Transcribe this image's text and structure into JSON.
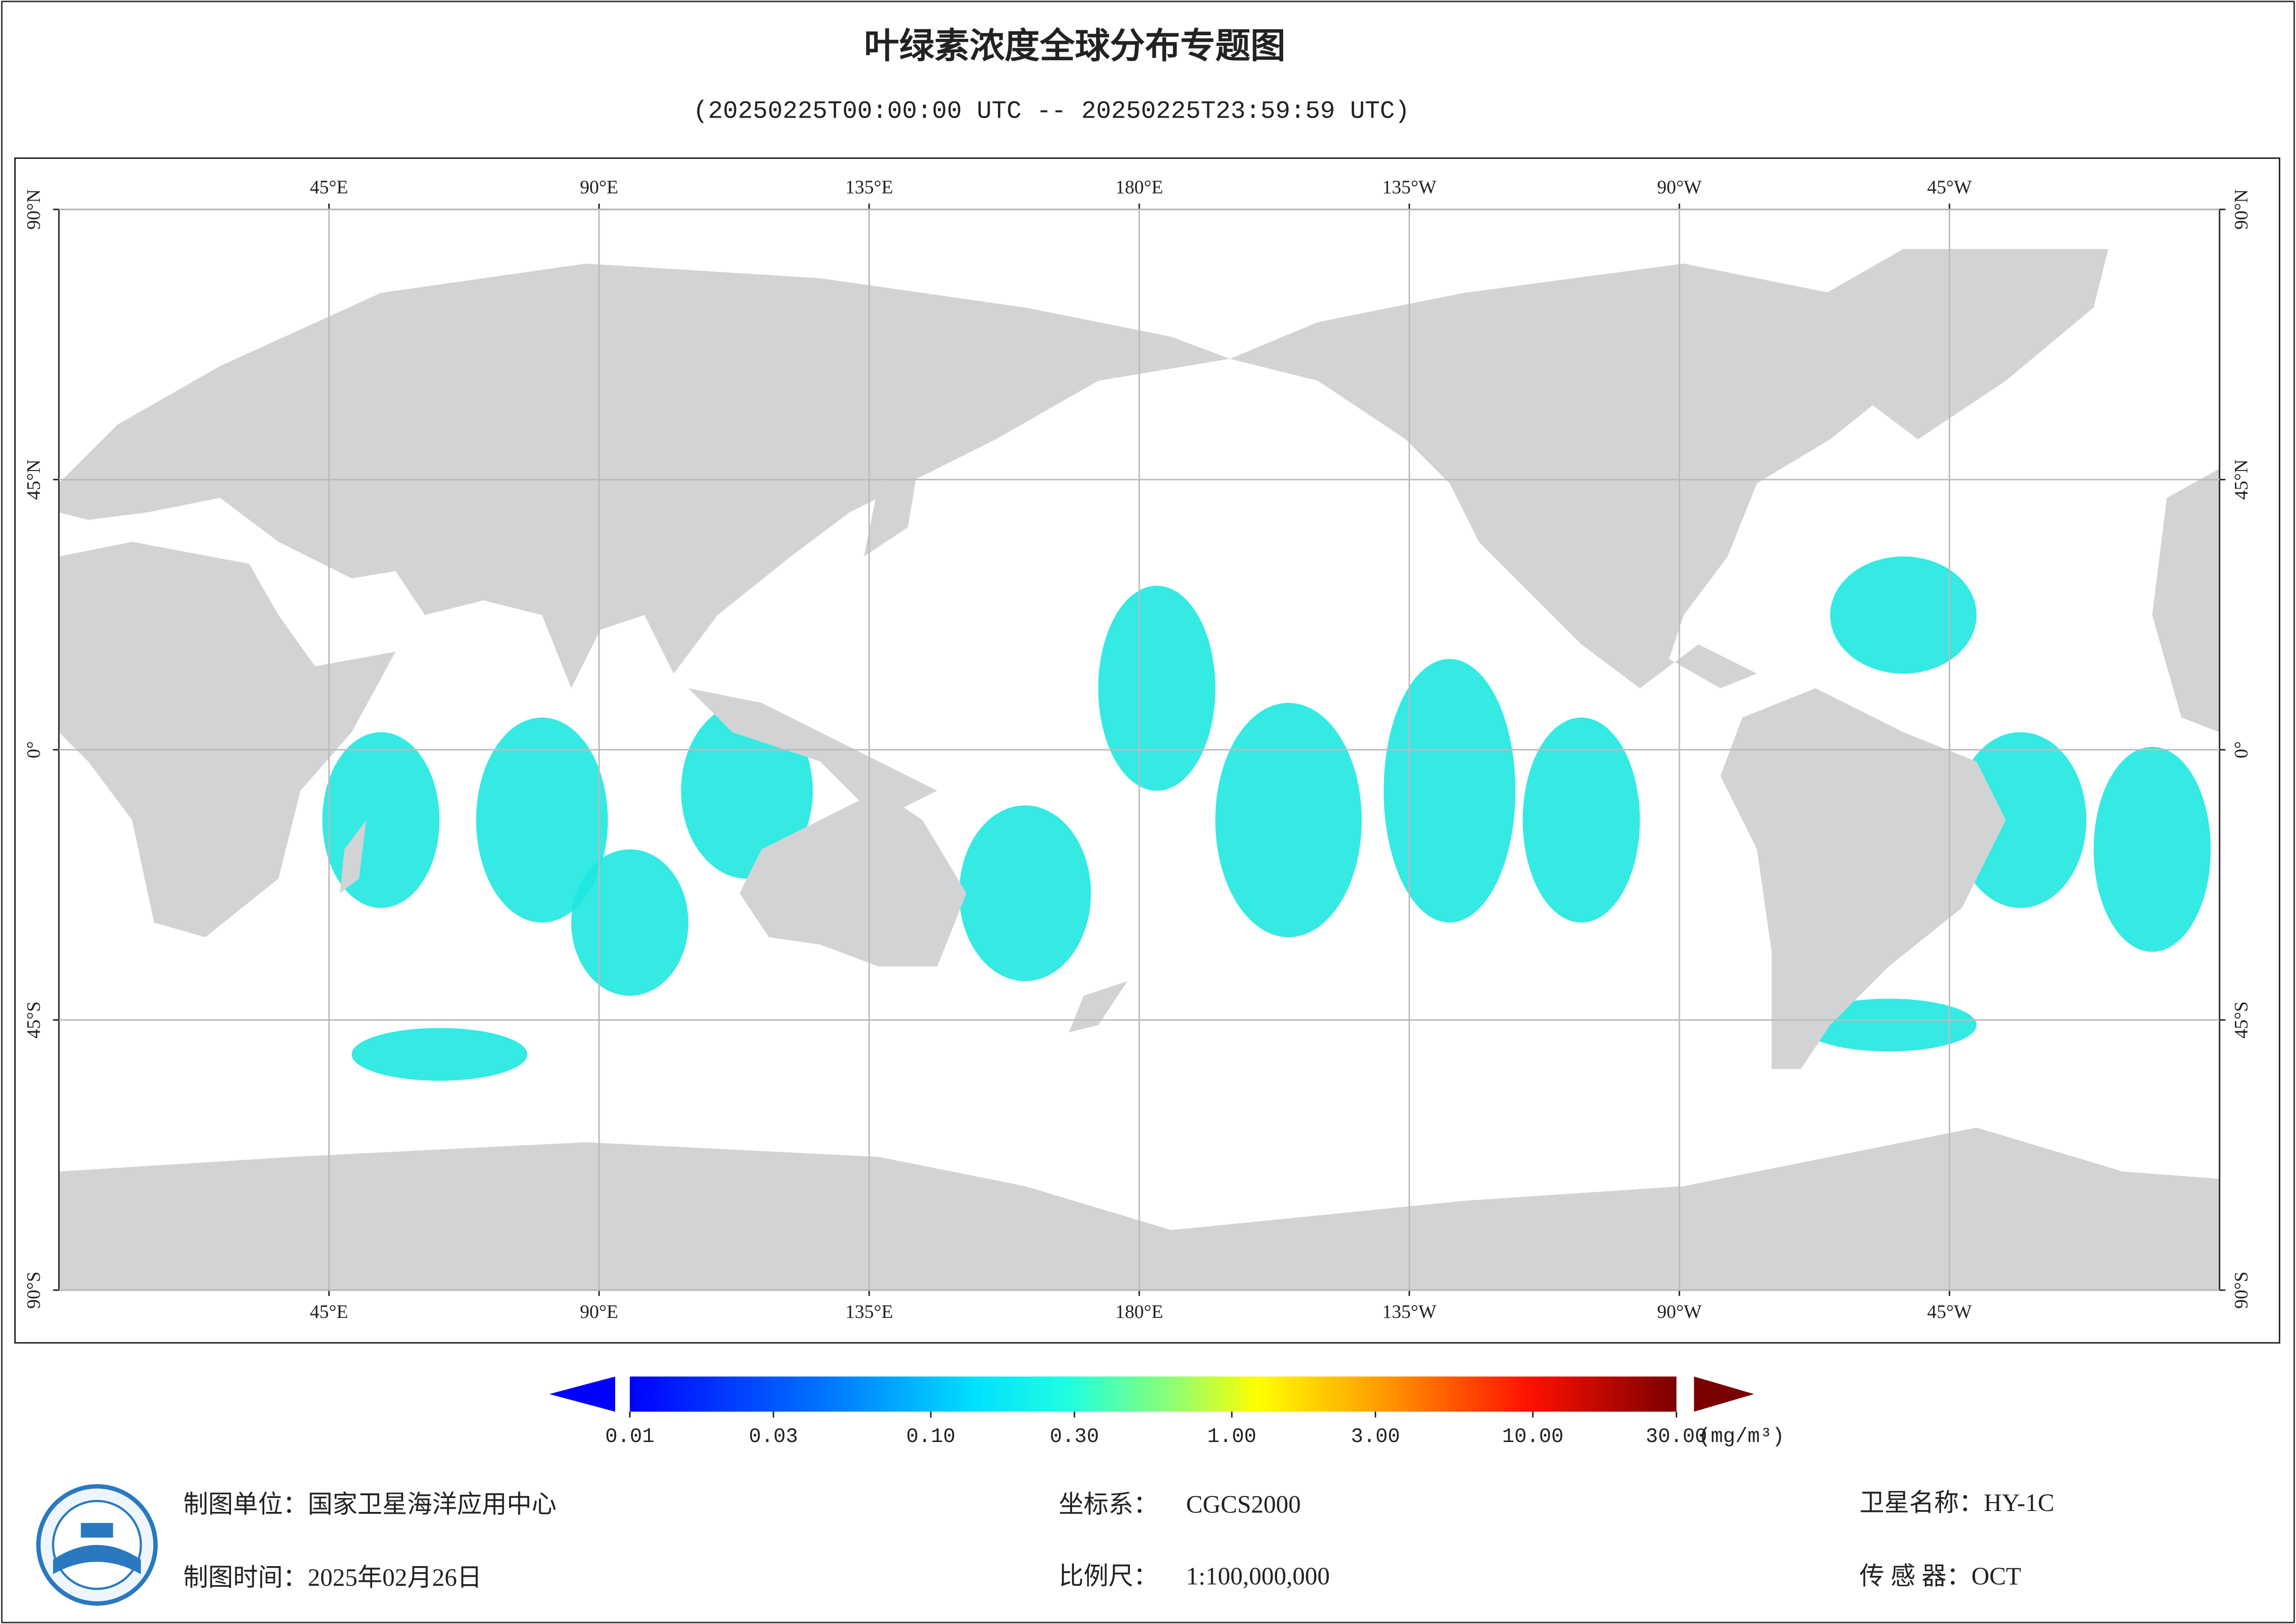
{
  "title": "叶绿素浓度全球分布专题图",
  "subtitle": "(20250225T00:00:00 UTC -- 20250225T23:59:59 UTC)",
  "map": {
    "xlim": [
      0,
      360
    ],
    "ylim": [
      -90,
      90
    ],
    "grid": true,
    "longitude_ticks": [
      {
        "value": 45,
        "label": "45°E"
      },
      {
        "value": 90,
        "label": "90°E"
      },
      {
        "value": 135,
        "label": "135°E"
      },
      {
        "value": 180,
        "label": "180°E"
      },
      {
        "value": -135,
        "label": "135°W"
      },
      {
        "value": -90,
        "label": "90°W"
      },
      {
        "value": -45,
        "label": "45°W"
      }
    ],
    "latitude_ticks": [
      {
        "value": 90,
        "label": "90°N"
      },
      {
        "value": 45,
        "label": "45°N"
      },
      {
        "value": 0,
        "label": "0°"
      },
      {
        "value": -45,
        "label": "45°S"
      },
      {
        "value": -90,
        "label": "90°S"
      }
    ]
  },
  "colorbar": {
    "log_scale": true,
    "range": [
      0.01,
      30
    ],
    "ticks": [
      0.01,
      0.03,
      {
        "value": 0.1,
        "label": "0.10"
      },
      {
        "value": 0.3,
        "label": "0.30"
      },
      {
        "value": 1,
        "label": "1.00"
      },
      {
        "value": 3,
        "label": "3.00"
      },
      {
        "value": 10,
        "label": "10.00"
      },
      {
        "value": 30,
        "label": "30.00"
      }
    ],
    "unit": "(mg/m³)"
  },
  "footer": {
    "unit": "制图单位：国家卫星海洋应用中心",
    "date": "制图时间：2025年02月26日",
    "crs_label": "坐标系：",
    "crs_value": "CGCS2000",
    "scale_label": "比例尺：",
    "scale_value": "1:100,000,000",
    "satellite": "卫星名称：HY-1C",
    "sensor": "传 感 器：OCT"
  }
}
